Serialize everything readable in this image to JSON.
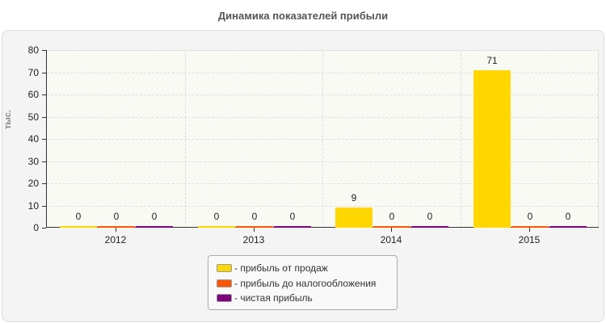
{
  "chart_data": {
    "type": "bar",
    "title": "Динамика показателей прибыли",
    "xlabel": "",
    "ylabel": "тыс.",
    "ylim": [
      0,
      80
    ],
    "yticks": [
      0,
      10,
      20,
      30,
      40,
      50,
      60,
      70,
      80
    ],
    "categories": [
      "2012",
      "2013",
      "2014",
      "2015"
    ],
    "series": [
      {
        "name": "прибыль от продаж",
        "color": "#FFD700",
        "values": [
          0,
          0,
          9,
          71
        ]
      },
      {
        "name": "прибыль до налогообложения",
        "color": "#FF5500",
        "values": [
          0,
          0,
          0,
          0
        ]
      },
      {
        "name": "чистая прибыль",
        "color": "#800080",
        "values": [
          0,
          0,
          0,
          0
        ]
      }
    ],
    "grid": true,
    "legend_position": "bottom"
  },
  "title": "Динамика показателей прибыли",
  "y_axis_title": "тыс.",
  "y_ticks": [
    "0",
    "10",
    "20",
    "30",
    "40",
    "50",
    "60",
    "70",
    "80"
  ],
  "x_ticks": [
    "2012",
    "2013",
    "2014",
    "2015"
  ],
  "value_labels": [
    [
      "0",
      "0",
      "0"
    ],
    [
      "0",
      "0",
      "0"
    ],
    [
      "9",
      "0",
      "0"
    ],
    [
      "71",
      "0",
      "0"
    ]
  ],
  "legend": [
    {
      "label": "- прибыль от продаж",
      "color": "#FFD700"
    },
    {
      "label": "- прибыль до налогообложения",
      "color": "#FF5500"
    },
    {
      "label": "- чистая прибыль",
      "color": "#800080"
    }
  ]
}
